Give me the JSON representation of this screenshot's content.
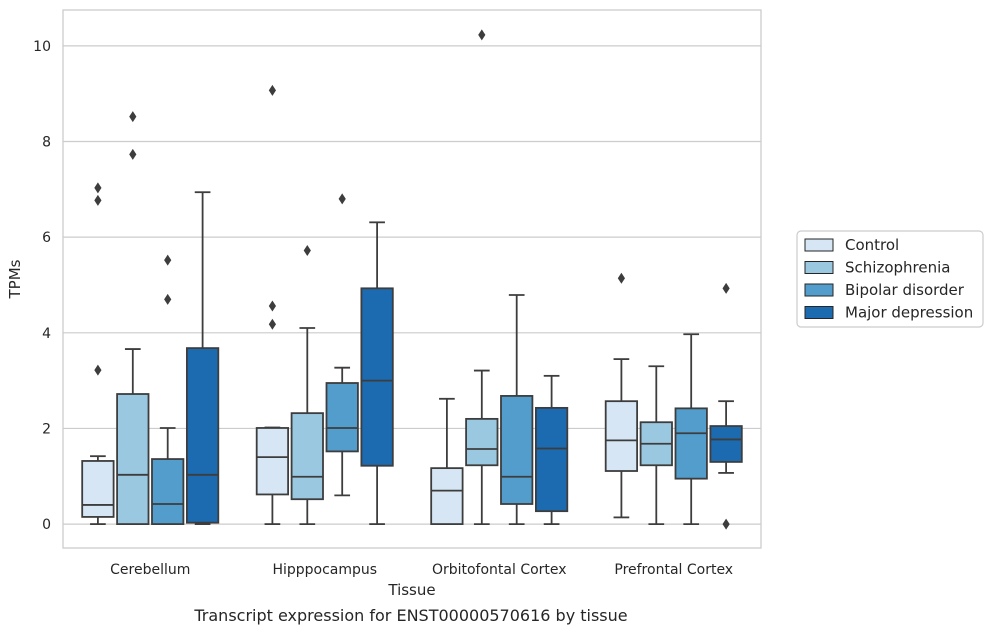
{
  "chart_data": {
    "type": "box",
    "caption": "Transcript expression for ENST00000570616 by tissue",
    "xlabel": "Tissue",
    "ylabel": "TPMs",
    "ylim": [
      -0.5,
      10.75
    ],
    "yticks": [
      0,
      2,
      4,
      6,
      8,
      10
    ],
    "grid": "horizontal",
    "legend_position": "right",
    "categories": [
      "Cerebellum",
      "Hipppocampus",
      "Orbitofontal Cortex",
      "Prefrontal Cortex"
    ],
    "series": [
      {
        "name": "Control",
        "color": "#d6e6f4",
        "boxes": [
          {
            "whislo": 0,
            "q1": 0.15,
            "med": 0.4,
            "q3": 1.32,
            "whishi": 1.42,
            "fliers": [
              3.22,
              6.77,
              7.03
            ]
          },
          {
            "whislo": 0,
            "q1": 0.62,
            "med": 1.4,
            "q3": 2.01,
            "whishi": 2.02,
            "fliers": [
              4.18,
              4.56,
              9.07
            ]
          },
          {
            "whislo": 0,
            "q1": 0,
            "med": 0.7,
            "q3": 1.17,
            "whishi": 2.62,
            "fliers": []
          },
          {
            "whislo": 0.14,
            "q1": 1.11,
            "med": 1.75,
            "q3": 2.57,
            "whishi": 3.45,
            "fliers": [
              5.14
            ]
          }
        ]
      },
      {
        "name": "Schizophrenia",
        "color": "#9ac8e0",
        "boxes": [
          {
            "whislo": 0,
            "q1": 0,
            "med": 1.03,
            "q3": 2.72,
            "whishi": 3.66,
            "fliers": [
              7.73,
              8.52
            ]
          },
          {
            "whislo": 0,
            "q1": 0.52,
            "med": 0.99,
            "q3": 2.32,
            "whishi": 4.1,
            "fliers": [
              5.72
            ]
          },
          {
            "whislo": 0,
            "q1": 1.23,
            "med": 1.57,
            "q3": 2.2,
            "whishi": 3.21,
            "fliers": [
              10.23
            ]
          },
          {
            "whislo": 0,
            "q1": 1.23,
            "med": 1.68,
            "q3": 2.13,
            "whishi": 3.3,
            "fliers": []
          }
        ]
      },
      {
        "name": "Bipolar disorder",
        "color": "#529dcc",
        "boxes": [
          {
            "whislo": 0,
            "q1": 0,
            "med": 0.42,
            "q3": 1.36,
            "whishi": 2.01,
            "fliers": [
              4.7,
              5.52
            ]
          },
          {
            "whislo": 0.6,
            "q1": 1.52,
            "med": 2.01,
            "q3": 2.95,
            "whishi": 3.27,
            "fliers": [
              6.8
            ]
          },
          {
            "whislo": 0,
            "q1": 0.42,
            "med": 0.99,
            "q3": 2.68,
            "whishi": 4.79,
            "fliers": []
          },
          {
            "whislo": 0,
            "q1": 0.95,
            "med": 1.9,
            "q3": 2.42,
            "whishi": 3.97,
            "fliers": []
          }
        ]
      },
      {
        "name": "Major depression",
        "color": "#1c6aaf",
        "boxes": [
          {
            "whislo": 0,
            "q1": 0.03,
            "med": 1.03,
            "q3": 3.68,
            "whishi": 6.94,
            "fliers": []
          },
          {
            "whislo": 0,
            "q1": 1.22,
            "med": 3.0,
            "q3": 4.93,
            "whishi": 6.31,
            "fliers": []
          },
          {
            "whislo": 0,
            "q1": 0.27,
            "med": 1.58,
            "q3": 2.43,
            "whishi": 3.1,
            "fliers": []
          },
          {
            "whislo": 1.07,
            "q1": 1.3,
            "med": 1.77,
            "q3": 2.05,
            "whishi": 2.57,
            "fliers": [
              0,
              4.93
            ]
          }
        ]
      }
    ]
  }
}
